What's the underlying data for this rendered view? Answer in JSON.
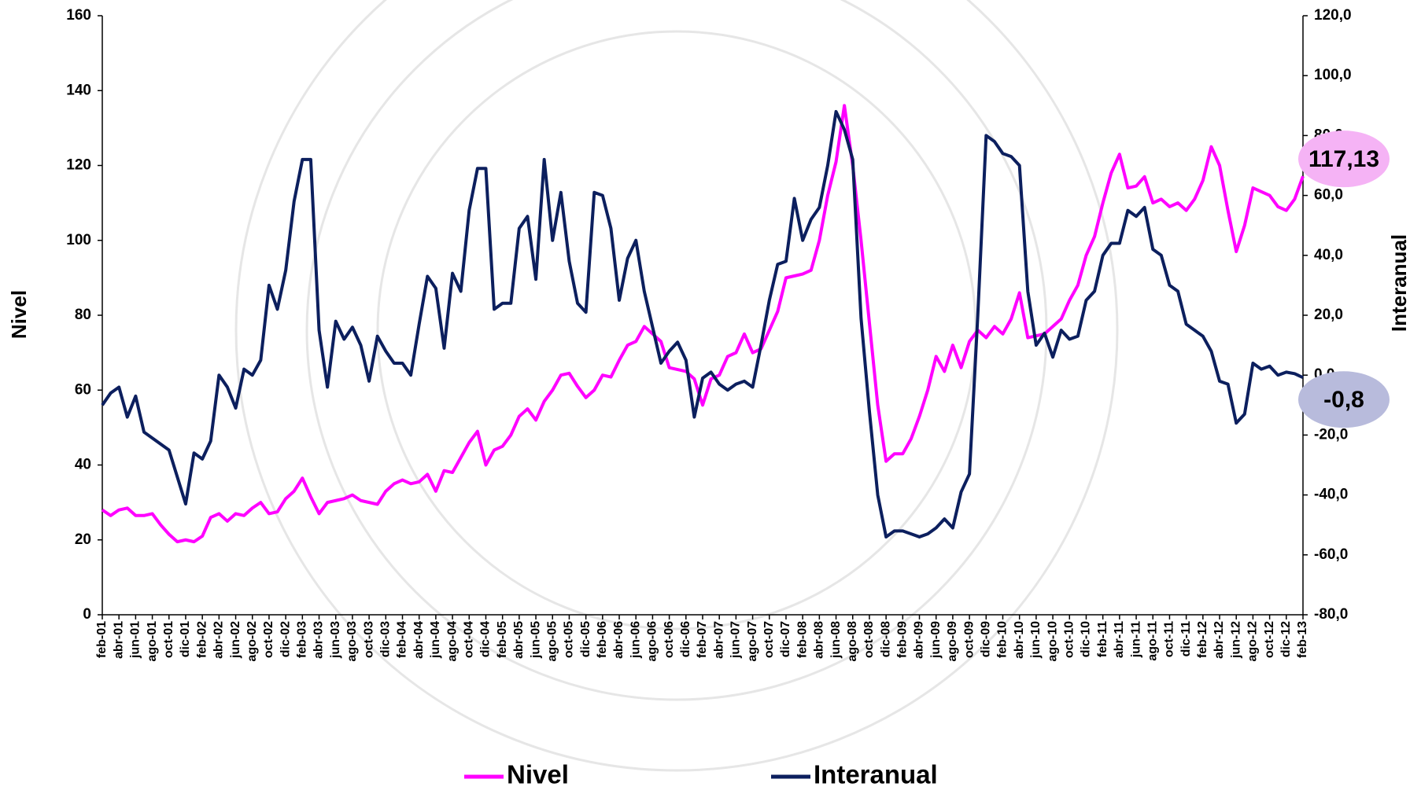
{
  "chart_data": {
    "type": "line",
    "y_label": "Nivel",
    "y2_label": "Interanual",
    "categories": [
      "feb-01",
      null,
      "abr-01",
      null,
      "jun-01",
      null,
      "ago-01",
      null,
      "oct-01",
      null,
      "dic-01",
      null,
      "feb-02",
      null,
      "abr-02",
      null,
      "jun-02",
      null,
      "ago-02",
      null,
      "oct-02",
      null,
      "dic-02",
      null,
      "feb-03",
      null,
      "abr-03",
      null,
      "jun-03",
      null,
      "ago-03",
      null,
      "oct-03",
      null,
      "dic-03",
      null,
      "feb-04",
      null,
      "abr-04",
      null,
      "jun-04",
      null,
      "ago-04",
      null,
      "oct-04",
      null,
      "dic-04",
      null,
      "feb-05",
      null,
      "abr-05",
      null,
      "jun-05",
      null,
      "ago-05",
      null,
      "oct-05",
      null,
      "dic-05",
      null,
      "feb-06",
      null,
      "abr-06",
      null,
      "jun-06",
      null,
      "ago-06",
      null,
      "oct-06",
      null,
      "dic-06",
      null,
      "feb-07",
      null,
      "abr-07",
      null,
      "jun-07",
      null,
      "ago-07",
      null,
      "oct-07",
      null,
      "dic-07",
      null,
      "feb-08",
      null,
      "abr-08",
      null,
      "jun-08",
      null,
      "ago-08",
      null,
      "oct-08",
      null,
      "dic-08",
      null,
      "feb-09",
      null,
      "abr-09",
      null,
      "jun-09",
      null,
      "ago-09",
      null,
      "oct-09",
      null,
      "dic-09",
      null,
      "feb-10",
      null,
      "abr-10",
      null,
      "jun-10",
      null,
      "ago-10",
      null,
      "oct-10",
      null,
      "dic-10",
      null,
      "feb-11",
      null,
      "abr-11",
      null,
      "jun-11",
      null,
      "ago-11",
      null,
      "oct-11",
      null,
      "dic-11",
      null,
      "feb-12",
      null,
      "abr-12",
      null,
      "jun-12",
      null,
      "ago-12",
      null,
      "oct-12",
      null,
      "dic-12",
      null,
      "feb-13"
    ],
    "series": [
      {
        "name": "Nivel",
        "color": "#ff00ff",
        "end_label": "117,13",
        "end_label_background": "#f5b3f5",
        "values": [
          28,
          26.5,
          28,
          28.5,
          26.5,
          26.5,
          27,
          24,
          21.5,
          19.5,
          20,
          19.5,
          21,
          26,
          27,
          25,
          27,
          26.5,
          28.5,
          30,
          27,
          27.5,
          31,
          33,
          36.5,
          31.5,
          27,
          30,
          30.5,
          31,
          32,
          30.5,
          30,
          29.5,
          33,
          35,
          36,
          35,
          35.5,
          37.5,
          33,
          38.5,
          38,
          42,
          46,
          49,
          40,
          44,
          45,
          48,
          53,
          55,
          52,
          57,
          60,
          64,
          64.5,
          61,
          58,
          60,
          64,
          63.5,
          68,
          72,
          73,
          77,
          75,
          73,
          66,
          65.5,
          65,
          63,
          56,
          63,
          64,
          69,
          70,
          75,
          70,
          71,
          76,
          81,
          90,
          90.5,
          91,
          92,
          100,
          112,
          121,
          136,
          120,
          100,
          78,
          56,
          41,
          43,
          43,
          47,
          53,
          60,
          69,
          65,
          72,
          66,
          73,
          76,
          74,
          77,
          75,
          79,
          86,
          74,
          74.5,
          75,
          77,
          79,
          84,
          88,
          96,
          101,
          110,
          118,
          123,
          114,
          114.5,
          117,
          110,
          111,
          109,
          110,
          108,
          111,
          116,
          125,
          120,
          108,
          97,
          104,
          114,
          113,
          112,
          109,
          108,
          111,
          117.13
        ]
      },
      {
        "name": "Interanual",
        "color": "#0c1f5e",
        "axis": "y2",
        "end_label": "-0,8",
        "end_label_background": "#b8bbdc",
        "values": [
          -10,
          -6,
          -4,
          -14,
          -7,
          -19,
          -21,
          -23,
          -25,
          -34,
          -43,
          -26,
          -28,
          -22,
          0,
          -4,
          -11,
          2,
          0,
          5,
          30,
          22,
          35,
          58,
          72,
          72,
          15,
          -4,
          18,
          12,
          16,
          10,
          -2,
          13,
          8,
          4,
          4,
          0,
          17,
          33,
          29,
          9,
          34,
          28,
          55,
          69,
          69,
          22,
          24,
          24,
          49,
          53,
          32,
          72,
          45,
          61,
          38,
          24,
          21,
          61,
          60,
          49,
          25,
          39,
          45,
          28,
          16,
          4,
          8,
          11,
          5,
          -14,
          -1,
          1,
          -3,
          -5,
          -3,
          -2,
          -4,
          10,
          25,
          37,
          38,
          59,
          45,
          52,
          56,
          70,
          88,
          82,
          72,
          19,
          -12,
          -40,
          -54,
          -52,
          -52,
          -53,
          -54,
          -53,
          -51,
          -48,
          -51,
          -39,
          -33,
          20,
          80,
          78,
          74,
          73,
          70,
          28,
          10,
          14,
          6,
          15,
          12,
          13,
          25,
          28,
          40,
          44,
          44,
          55,
          53,
          56,
          42,
          40,
          30,
          28,
          17,
          15,
          13,
          8,
          -2,
          -3,
          -16,
          -13,
          4,
          2,
          3,
          0,
          1,
          0.5,
          -0.8
        ]
      }
    ],
    "ylim": [
      0,
      160
    ],
    "yticks": [
      0,
      20,
      40,
      60,
      80,
      100,
      120,
      140,
      160
    ],
    "y2lim": [
      -80,
      120
    ],
    "y2ticks": [
      {
        "value": -80,
        "label": "-80,0"
      },
      {
        "value": -60,
        "label": "-60,0"
      },
      {
        "value": -40,
        "label": "-40,0"
      },
      {
        "value": -20,
        "label": "-20,0"
      },
      {
        "value": 0,
        "label": "0,0"
      },
      {
        "value": 20,
        "label": "20,0"
      },
      {
        "value": 40,
        "label": "40,0"
      },
      {
        "value": 60,
        "label": "60,0"
      },
      {
        "value": 80,
        "label": "80,0"
      },
      {
        "value": 100,
        "label": "100,0"
      },
      {
        "value": 120,
        "label": "120,0"
      }
    ],
    "y_label_color": "#ff00ff",
    "y2_label_color": "#1f3a6e",
    "grid": false,
    "legend": "bottom"
  }
}
